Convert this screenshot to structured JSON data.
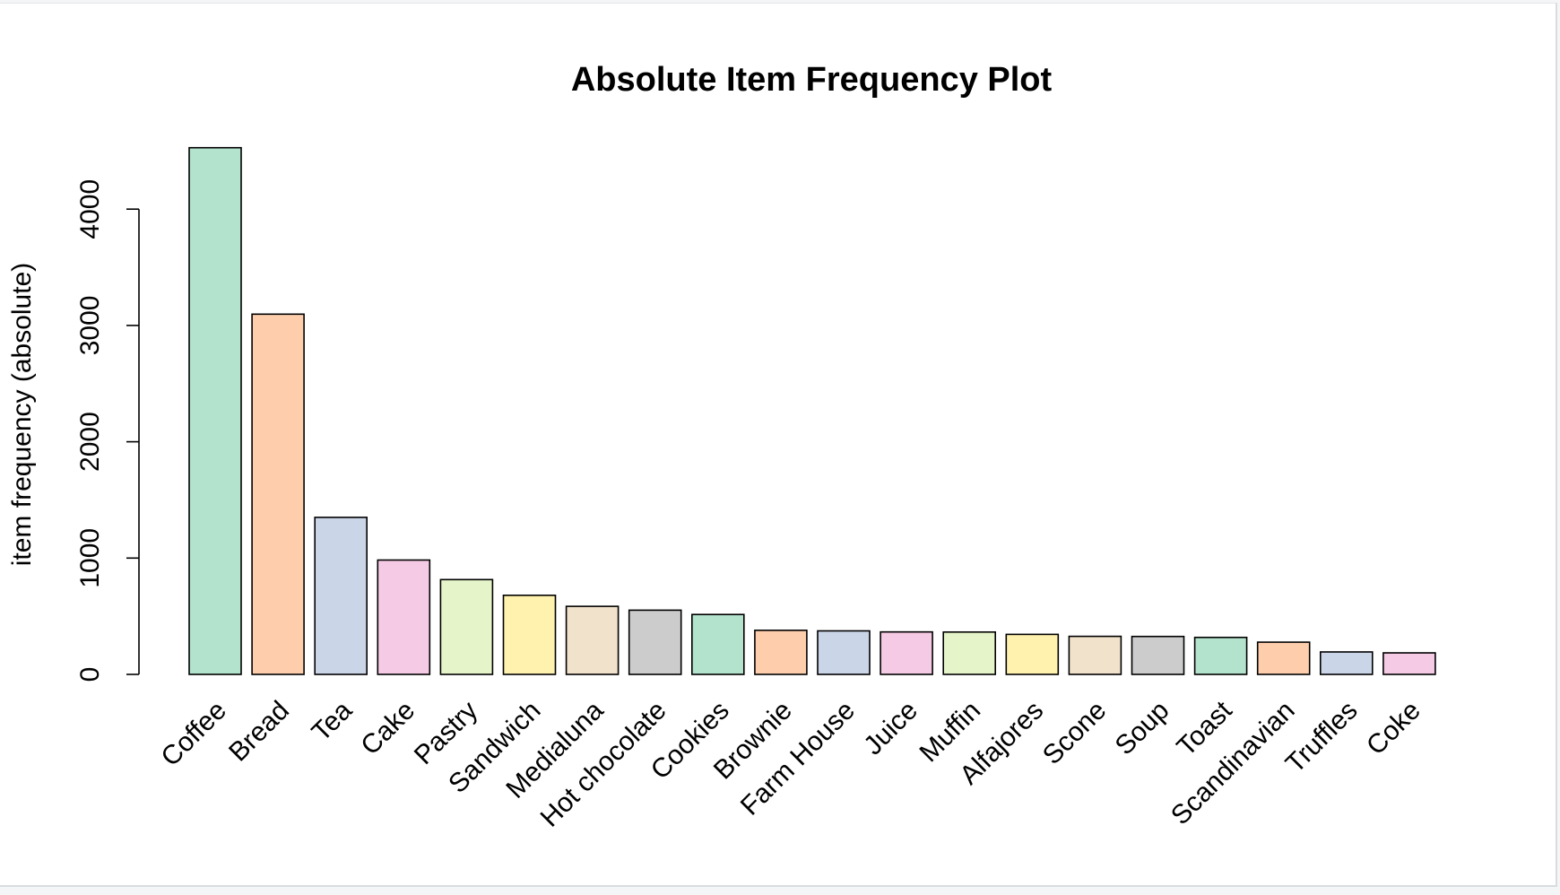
{
  "chart_data": {
    "type": "bar",
    "title": "Absolute Item Frequency Plot",
    "xlabel": "",
    "ylabel": "item frequency (absolute)",
    "ylim": [
      0,
      4528
    ],
    "yticks": [
      0,
      1000,
      2000,
      3000,
      4000
    ],
    "ytick_labels": [
      "0",
      "1000",
      "2000",
      "3000",
      "4000"
    ],
    "grid": false,
    "categories": [
      "Coffee",
      "Bread",
      "Tea",
      "Cake",
      "Pastry",
      "Sandwich",
      "Medialuna",
      "Hot chocolate",
      "Cookies",
      "Brownie",
      "Farm House",
      "Juice",
      "Muffin",
      "Alfajores",
      "Scone",
      "Soup",
      "Toast",
      "Scandinavian",
      "Truffles",
      "Coke"
    ],
    "values": [
      4528,
      3097,
      1350,
      983,
      815,
      680,
      585,
      552,
      515,
      379,
      374,
      365,
      364,
      344,
      327,
      326,
      318,
      277,
      193,
      185
    ],
    "colors": [
      "#b3e2cd",
      "#fdcdac",
      "#cbd5e8",
      "#f4cae4",
      "#e6f5c9",
      "#fff2ae",
      "#f1e2cc",
      "#cccccc",
      "#b3e2cd",
      "#fdcdac",
      "#cbd5e8",
      "#f4cae4",
      "#e6f5c9",
      "#fff2ae",
      "#f1e2cc",
      "#cccccc",
      "#b3e2cd",
      "#fdcdac",
      "#cbd5e8",
      "#f4cae4"
    ]
  }
}
